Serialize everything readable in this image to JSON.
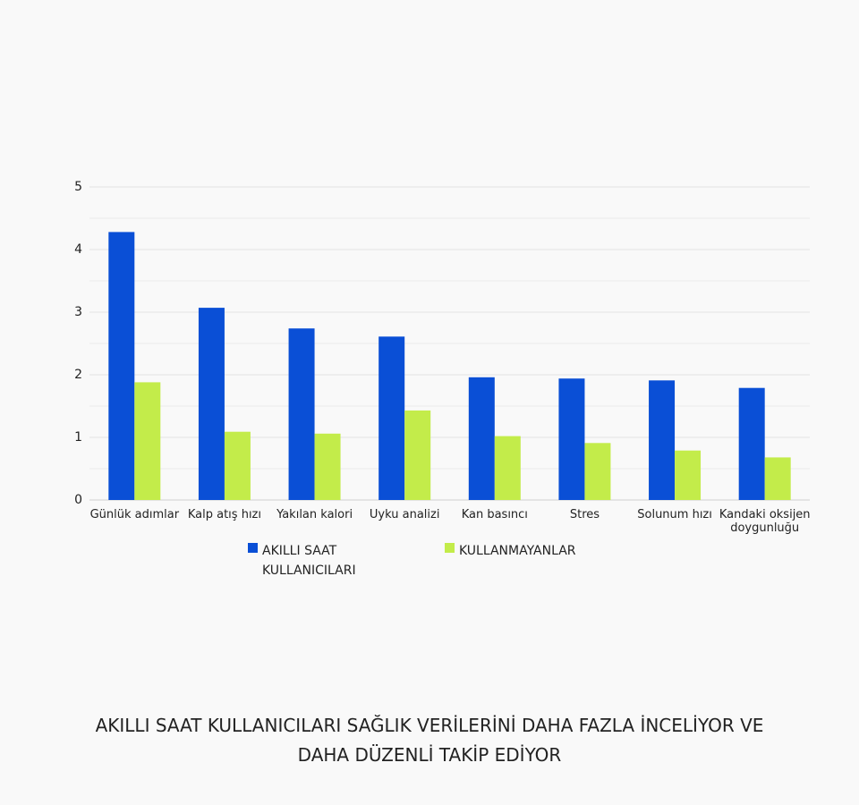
{
  "chart_data": {
    "type": "bar",
    "title": "AKILLI SAAT KULLANICILARI  SAĞLIK VERİLERİNİ DAHA FAZLA İNCELİYOR VE DAHA DÜZENLİ TAKİP EDİYOR",
    "categories": [
      "Günlük adımlar",
      "Kalp atış hızı",
      "Yakılan kalori",
      "Uyku analizi",
      "Kan basıncı",
      "Stres",
      "Solunum hızı",
      "Kandaki oksijen doygunluğu"
    ],
    "series": [
      {
        "name": "AKILLI SAAT KULLANICILARI",
        "color": "#0a4fd6",
        "values": [
          4.28,
          3.07,
          2.74,
          2.61,
          1.96,
          1.94,
          1.91,
          1.79
        ]
      },
      {
        "name": "KULLANMAYANLAR",
        "color": "#c3ec4a",
        "values": [
          1.88,
          1.09,
          1.06,
          1.43,
          1.02,
          0.91,
          0.79,
          0.68
        ]
      }
    ],
    "ylim": [
      0,
      5
    ],
    "yticks": [
      0,
      1,
      2,
      3,
      4,
      5
    ],
    "minor_yticks": [
      0.5,
      1.5,
      2.5,
      3.5,
      4.5
    ],
    "grid": true
  }
}
